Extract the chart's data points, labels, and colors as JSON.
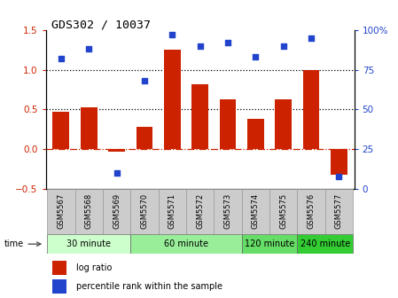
{
  "title": "GDS302 / 10037",
  "samples": [
    "GSM5567",
    "GSM5568",
    "GSM5569",
    "GSM5570",
    "GSM5571",
    "GSM5572",
    "GSM5573",
    "GSM5574",
    "GSM5575",
    "GSM5576",
    "GSM5577"
  ],
  "log_ratio": [
    0.47,
    0.53,
    -0.03,
    0.28,
    1.25,
    0.82,
    0.63,
    0.38,
    0.63,
    1.0,
    -0.32
  ],
  "percentile": [
    82,
    88,
    10,
    68,
    97,
    90,
    92,
    83,
    90,
    95,
    8
  ],
  "bar_color": "#cc2200",
  "dot_color": "#2244cc",
  "ylim_left": [
    -0.5,
    1.5
  ],
  "ylim_right": [
    0,
    100
  ],
  "yticks_left": [
    -0.5,
    0.0,
    0.5,
    1.0,
    1.5
  ],
  "yticks_right": [
    0,
    25,
    50,
    75,
    100
  ],
  "ytick_labels_right": [
    "0",
    "25",
    "50",
    "75",
    "100%"
  ],
  "hline_y": [
    0.5,
    1.0
  ],
  "hline_color": "black",
  "zero_line_color": "#cc2200",
  "groups": [
    {
      "label": "30 minute",
      "samples": [
        "GSM5567",
        "GSM5568",
        "GSM5569"
      ],
      "color": "#ccffcc"
    },
    {
      "label": "60 minute",
      "samples": [
        "GSM5570",
        "GSM5571",
        "GSM5572",
        "GSM5573"
      ],
      "color": "#99ee99"
    },
    {
      "label": "120 minute",
      "samples": [
        "GSM5574",
        "GSM5575"
      ],
      "color": "#66dd66"
    },
    {
      "label": "240 minute",
      "samples": [
        "GSM5576",
        "GSM5577"
      ],
      "color": "#33cc33"
    }
  ],
  "time_label": "time",
  "legend_bar_label": "log ratio",
  "legend_dot_label": "percentile rank within the sample",
  "bg_color": "#ffffff",
  "sample_bg_color": "#cccccc",
  "sample_border_color": "#999999",
  "plot_bg": "#ffffff"
}
